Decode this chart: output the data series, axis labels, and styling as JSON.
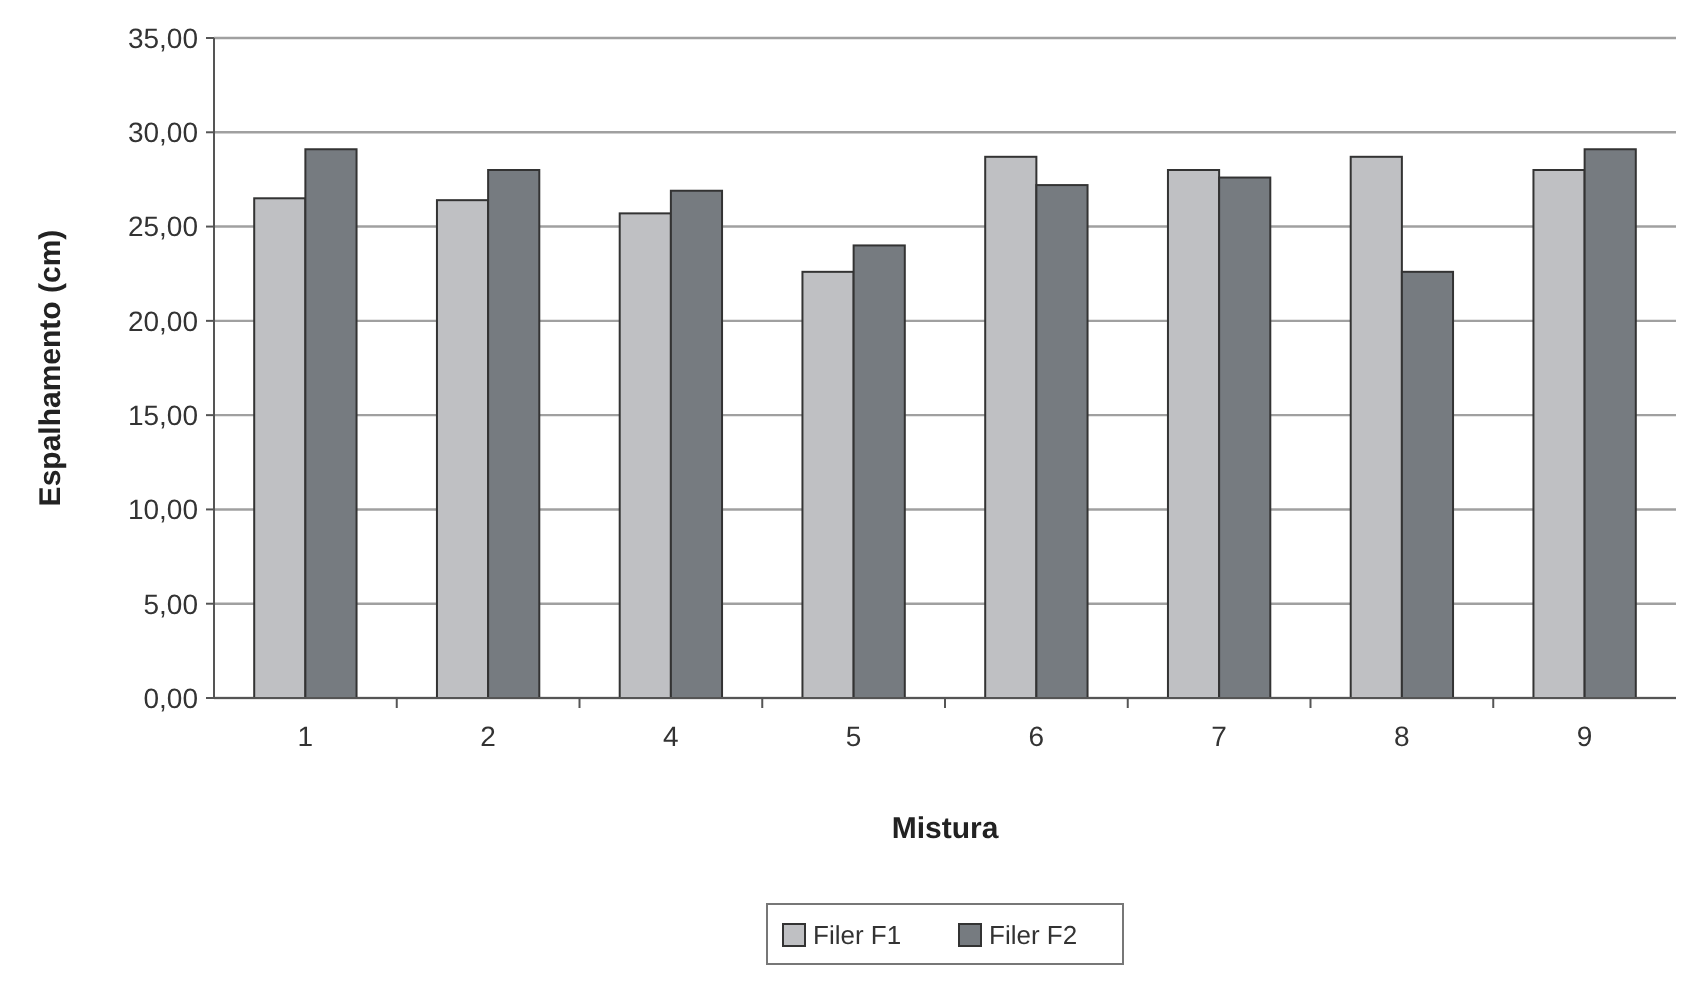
{
  "chart_data": {
    "type": "bar",
    "xlabel": "Mistura",
    "ylabel": "Espalhamento (cm)",
    "categories": [
      "1",
      "2",
      "4",
      "5",
      "6",
      "7",
      "8",
      "9"
    ],
    "series": [
      {
        "name": "Filer F1",
        "color": "#bfc0c3",
        "values": [
          26.5,
          26.4,
          25.7,
          22.6,
          28.7,
          28.0,
          28.7,
          28.0
        ]
      },
      {
        "name": "Filer F2",
        "color": "#767b80",
        "values": [
          29.1,
          28.0,
          26.9,
          24.0,
          27.2,
          27.6,
          22.6,
          29.1
        ]
      }
    ],
    "ylim": [
      0,
      35
    ],
    "yticks": [
      {
        "value": 0,
        "label": "0,00"
      },
      {
        "value": 5,
        "label": "5,00"
      },
      {
        "value": 10,
        "label": "10,00"
      },
      {
        "value": 15,
        "label": "15,00"
      },
      {
        "value": 20,
        "label": "20,00"
      },
      {
        "value": 25,
        "label": "25,00"
      },
      {
        "value": 30,
        "label": "30,00"
      },
      {
        "value": 35,
        "label": "35,00"
      }
    ],
    "grid": "y",
    "legend": "bottom"
  }
}
